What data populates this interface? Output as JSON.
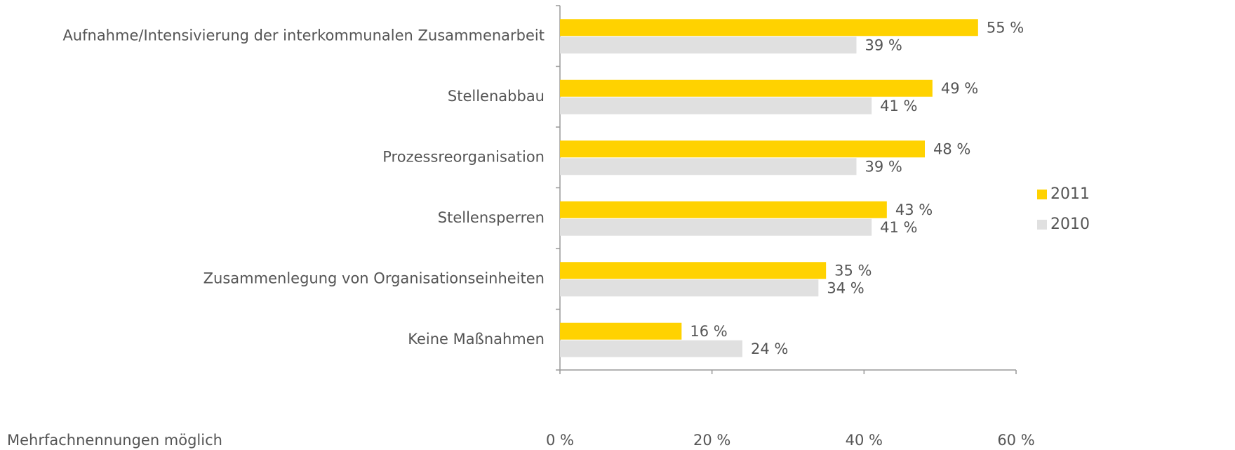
{
  "chart_data": {
    "type": "bar",
    "orientation": "horizontal",
    "categories": [
      "Aufnahme/Intensivierung der interkommunalen Zusammenarbeit",
      "Stellenabbau",
      "Prozessreorganisation",
      "Stellensperren",
      "Zusammenlegung von Organisationseinheiten",
      "Keine Maßnahmen"
    ],
    "series": [
      {
        "name": "2011",
        "color": "#ffd200",
        "values": [
          55,
          49,
          48,
          43,
          35,
          16
        ],
        "value_labels": [
          "55 %",
          "49 %",
          "48 %",
          "43 %",
          "35 %",
          "16 %"
        ]
      },
      {
        "name": "2010",
        "color": "#e0e0e0",
        "values": [
          39,
          41,
          39,
          41,
          34,
          24
        ],
        "value_labels": [
          "39 %",
          "41 %",
          "39 %",
          "41 %",
          "34 %",
          "24 %"
        ]
      }
    ],
    "xlim": [
      0,
      60
    ],
    "xticks": [
      {
        "value": 0,
        "label": "0 %"
      },
      {
        "value": 20,
        "label": "20 %"
      },
      {
        "value": 40,
        "label": "40 %"
      },
      {
        "value": 60,
        "label": "60 %"
      }
    ],
    "legend": "right",
    "annotations": [
      "Mehrfachnennungen möglich"
    ]
  }
}
